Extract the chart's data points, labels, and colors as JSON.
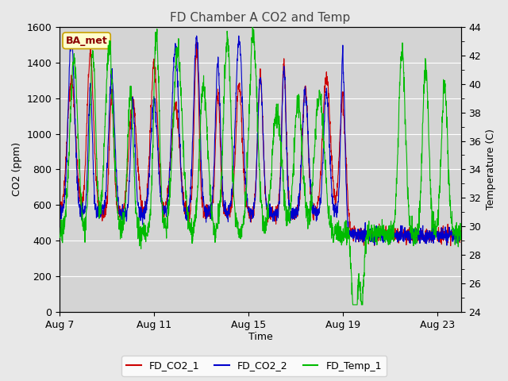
{
  "title": "FD Chamber A CO2 and Temp",
  "xlabel": "Time",
  "ylabel_left": "CO2 (ppm)",
  "ylabel_right": "Temperature (C)",
  "ylim_left": [
    0,
    1600
  ],
  "ylim_right": [
    24,
    44
  ],
  "yticks_left": [
    0,
    200,
    400,
    600,
    800,
    1000,
    1200,
    1400,
    1600
  ],
  "yticks_right": [
    24,
    26,
    28,
    30,
    32,
    34,
    36,
    38,
    40,
    42,
    44
  ],
  "xtick_labels": [
    "Aug 7",
    "Aug 11",
    "Aug 15",
    "Aug 19",
    "Aug 23"
  ],
  "bg_color": "#e8e8e8",
  "plot_bg_color": "#d4d4d4",
  "annotation_text": "BA_met",
  "annotation_bg": "#ffffcc",
  "annotation_border": "#c8a000",
  "legend_entries": [
    "FD_CO2_1",
    "FD_CO2_2",
    "FD_Temp_1"
  ],
  "line_colors": [
    "#cc0000",
    "#0000cc",
    "#00bb00"
  ],
  "title_fontsize": 11,
  "axis_fontsize": 9,
  "tick_fontsize": 9,
  "legend_fontsize": 9
}
